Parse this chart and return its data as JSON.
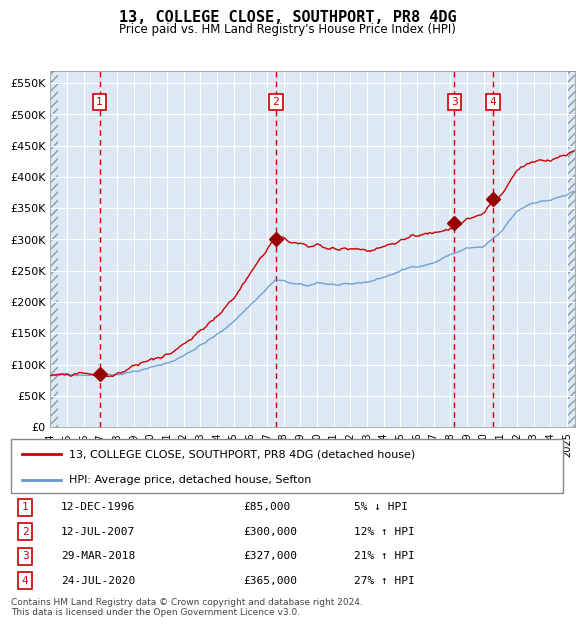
{
  "title": "13, COLLEGE CLOSE, SOUTHPORT, PR8 4DG",
  "subtitle": "Price paid vs. HM Land Registry's House Price Index (HPI)",
  "ylim": [
    0,
    570000
  ],
  "xlim_start": 1994.0,
  "xlim_end": 2025.5,
  "background_color": "#dce9f5",
  "grid_color": "#ffffff",
  "sale_points": [
    {
      "date_num": 1996.95,
      "price": 85000,
      "label": "1"
    },
    {
      "date_num": 2007.53,
      "price": 300000,
      "label": "2"
    },
    {
      "date_num": 2018.24,
      "price": 327000,
      "label": "3"
    },
    {
      "date_num": 2020.56,
      "price": 365000,
      "label": "4"
    }
  ],
  "sale_labels": [
    {
      "num": "1",
      "date": "12-DEC-1996",
      "price": "£85,000",
      "hpi": "5% ↓ HPI"
    },
    {
      "num": "2",
      "date": "12-JUL-2007",
      "price": "£300,000",
      "hpi": "12% ↑ HPI"
    },
    {
      "num": "3",
      "date": "29-MAR-2018",
      "price": "£327,000",
      "hpi": "21% ↑ HPI"
    },
    {
      "num": "4",
      "date": "24-JUL-2020",
      "price": "£365,000",
      "hpi": "27% ↑ HPI"
    }
  ],
  "legend_line1": "13, COLLEGE CLOSE, SOUTHPORT, PR8 4DG (detached house)",
  "legend_line2": "HPI: Average price, detached house, Sefton",
  "footer": "Contains HM Land Registry data © Crown copyright and database right 2024.\nThis data is licensed under the Open Government Licence v3.0.",
  "red_line_color": "#cc0000",
  "blue_line_color": "#6699cc",
  "marker_color": "#990000",
  "vline_color": "#cc0000",
  "label_box_color": "#cc0000",
  "xticks": [
    1994,
    1995,
    1996,
    1997,
    1998,
    1999,
    2000,
    2001,
    2002,
    2003,
    2004,
    2005,
    2006,
    2007,
    2008,
    2009,
    2010,
    2011,
    2012,
    2013,
    2014,
    2015,
    2016,
    2017,
    2018,
    2019,
    2020,
    2021,
    2022,
    2023,
    2024,
    2025
  ],
  "ytick_vals": [
    0,
    50000,
    100000,
    150000,
    200000,
    250000,
    300000,
    350000,
    400000,
    450000,
    500000,
    550000
  ],
  "ytick_labels": [
    "£0",
    "£50K",
    "£100K",
    "£150K",
    "£200K",
    "£250K",
    "£300K",
    "£350K",
    "£400K",
    "£450K",
    "£500K",
    "£550K"
  ]
}
